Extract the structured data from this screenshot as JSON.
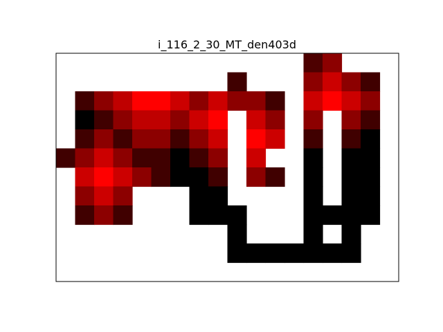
{
  "chart_data": {
    "type": "heatmap",
    "title": "i_116_2_30_MT_den403d",
    "xlabel": "",
    "ylabel": "",
    "n_cols": 18,
    "n_rows": 12,
    "grid": false,
    "axes_ticks": false,
    "colormap": "black-red",
    "colors": {
      "low": "#000000",
      "high": "#ff0000",
      "empty": "#ffffff",
      "frame": "#000000"
    },
    "value_range": [
      0,
      1
    ],
    "cells": [
      {
        "col": 13,
        "row": 0,
        "value": 0.3
      },
      {
        "col": 14,
        "row": 0,
        "value": 0.55
      },
      {
        "col": 9,
        "row": 1,
        "value": 0.25
      },
      {
        "col": 13,
        "row": 1,
        "value": 0.55
      },
      {
        "col": 14,
        "row": 1,
        "value": 0.8
      },
      {
        "col": 15,
        "row": 1,
        "value": 0.55
      },
      {
        "col": 16,
        "row": 1,
        "value": 0.25
      },
      {
        "col": 1,
        "row": 2,
        "value": 0.25
      },
      {
        "col": 2,
        "row": 2,
        "value": 0.55
      },
      {
        "col": 3,
        "row": 2,
        "value": 0.75
      },
      {
        "col": 4,
        "row": 2,
        "value": 1.0
      },
      {
        "col": 5,
        "row": 2,
        "value": 1.0
      },
      {
        "col": 6,
        "row": 2,
        "value": 0.8
      },
      {
        "col": 7,
        "row": 2,
        "value": 0.55
      },
      {
        "col": 8,
        "row": 2,
        "value": 0.8
      },
      {
        "col": 9,
        "row": 2,
        "value": 0.55
      },
      {
        "col": 10,
        "row": 2,
        "value": 0.55
      },
      {
        "col": 11,
        "row": 2,
        "value": 0.25
      },
      {
        "col": 13,
        "row": 2,
        "value": 0.8
      },
      {
        "col": 14,
        "row": 2,
        "value": 1.0
      },
      {
        "col": 15,
        "row": 2,
        "value": 0.8
      },
      {
        "col": 16,
        "row": 2,
        "value": 0.55
      },
      {
        "col": 1,
        "row": 3,
        "value": 0.0
      },
      {
        "col": 2,
        "row": 3,
        "value": 0.25
      },
      {
        "col": 3,
        "row": 3,
        "value": 0.55
      },
      {
        "col": 4,
        "row": 3,
        "value": 0.75
      },
      {
        "col": 5,
        "row": 3,
        "value": 0.75
      },
      {
        "col": 6,
        "row": 3,
        "value": 0.55
      },
      {
        "col": 7,
        "row": 3,
        "value": 0.8
      },
      {
        "col": 8,
        "row": 3,
        "value": 1.0
      },
      {
        "col": 10,
        "row": 3,
        "value": 0.8
      },
      {
        "col": 11,
        "row": 3,
        "value": 0.55
      },
      {
        "col": 13,
        "row": 3,
        "value": 0.55
      },
      {
        "col": 15,
        "row": 3,
        "value": 0.55
      },
      {
        "col": 16,
        "row": 3,
        "value": 0.25
      },
      {
        "col": 1,
        "row": 4,
        "value": 0.25
      },
      {
        "col": 2,
        "row": 4,
        "value": 0.55
      },
      {
        "col": 3,
        "row": 4,
        "value": 0.25
      },
      {
        "col": 4,
        "row": 4,
        "value": 0.55
      },
      {
        "col": 5,
        "row": 4,
        "value": 0.55
      },
      {
        "col": 6,
        "row": 4,
        "value": 0.25
      },
      {
        "col": 7,
        "row": 4,
        "value": 0.55
      },
      {
        "col": 8,
        "row": 4,
        "value": 0.8
      },
      {
        "col": 10,
        "row": 4,
        "value": 1.0
      },
      {
        "col": 11,
        "row": 4,
        "value": 0.8
      },
      {
        "col": 13,
        "row": 4,
        "value": 0.25
      },
      {
        "col": 15,
        "row": 4,
        "value": 0.25
      },
      {
        "col": 16,
        "row": 4,
        "value": 0.0
      },
      {
        "col": 0,
        "row": 5,
        "value": 0.25
      },
      {
        "col": 1,
        "row": 5,
        "value": 0.55
      },
      {
        "col": 2,
        "row": 5,
        "value": 0.8
      },
      {
        "col": 3,
        "row": 5,
        "value": 0.55
      },
      {
        "col": 4,
        "row": 5,
        "value": 0.25
      },
      {
        "col": 5,
        "row": 5,
        "value": 0.25
      },
      {
        "col": 6,
        "row": 5,
        "value": 0.0
      },
      {
        "col": 7,
        "row": 5,
        "value": 0.25
      },
      {
        "col": 8,
        "row": 5,
        "value": 0.55
      },
      {
        "col": 10,
        "row": 5,
        "value": 0.8
      },
      {
        "col": 13,
        "row": 5,
        "value": 0.0
      },
      {
        "col": 15,
        "row": 5,
        "value": 0.0
      },
      {
        "col": 16,
        "row": 5,
        "value": 0.0
      },
      {
        "col": 1,
        "row": 6,
        "value": 0.8
      },
      {
        "col": 2,
        "row": 6,
        "value": 1.0
      },
      {
        "col": 3,
        "row": 6,
        "value": 0.8
      },
      {
        "col": 4,
        "row": 6,
        "value": 0.55
      },
      {
        "col": 5,
        "row": 6,
        "value": 0.25
      },
      {
        "col": 6,
        "row": 6,
        "value": 0.0
      },
      {
        "col": 7,
        "row": 6,
        "value": 0.0
      },
      {
        "col": 8,
        "row": 6,
        "value": 0.25
      },
      {
        "col": 10,
        "row": 6,
        "value": 0.55
      },
      {
        "col": 11,
        "row": 6,
        "value": 0.25
      },
      {
        "col": 13,
        "row": 6,
        "value": 0.0
      },
      {
        "col": 15,
        "row": 6,
        "value": 0.0
      },
      {
        "col": 16,
        "row": 6,
        "value": 0.0
      },
      {
        "col": 1,
        "row": 7,
        "value": 0.55
      },
      {
        "col": 2,
        "row": 7,
        "value": 0.8
      },
      {
        "col": 3,
        "row": 7,
        "value": 0.55
      },
      {
        "col": 7,
        "row": 7,
        "value": 0.0
      },
      {
        "col": 8,
        "row": 7,
        "value": 0.0
      },
      {
        "col": 13,
        "row": 7,
        "value": 0.0
      },
      {
        "col": 15,
        "row": 7,
        "value": 0.0
      },
      {
        "col": 16,
        "row": 7,
        "value": 0.0
      },
      {
        "col": 1,
        "row": 8,
        "value": 0.25
      },
      {
        "col": 2,
        "row": 8,
        "value": 0.55
      },
      {
        "col": 3,
        "row": 8,
        "value": 0.25
      },
      {
        "col": 7,
        "row": 8,
        "value": 0.0
      },
      {
        "col": 8,
        "row": 8,
        "value": 0.0
      },
      {
        "col": 9,
        "row": 8,
        "value": 0.0
      },
      {
        "col": 13,
        "row": 8,
        "value": 0.0
      },
      {
        "col": 14,
        "row": 8,
        "value": 0.0
      },
      {
        "col": 15,
        "row": 8,
        "value": 0.0
      },
      {
        "col": 16,
        "row": 8,
        "value": 0.0
      },
      {
        "col": 9,
        "row": 9,
        "value": 0.0
      },
      {
        "col": 13,
        "row": 9,
        "value": 0.0
      },
      {
        "col": 15,
        "row": 9,
        "value": 0.0
      },
      {
        "col": 9,
        "row": 10,
        "value": 0.0
      },
      {
        "col": 10,
        "row": 10,
        "value": 0.0
      },
      {
        "col": 11,
        "row": 10,
        "value": 0.0
      },
      {
        "col": 12,
        "row": 10,
        "value": 0.0
      },
      {
        "col": 13,
        "row": 10,
        "value": 0.0
      },
      {
        "col": 14,
        "row": 10,
        "value": 0.0
      },
      {
        "col": 15,
        "row": 10,
        "value": 0.0
      }
    ]
  }
}
